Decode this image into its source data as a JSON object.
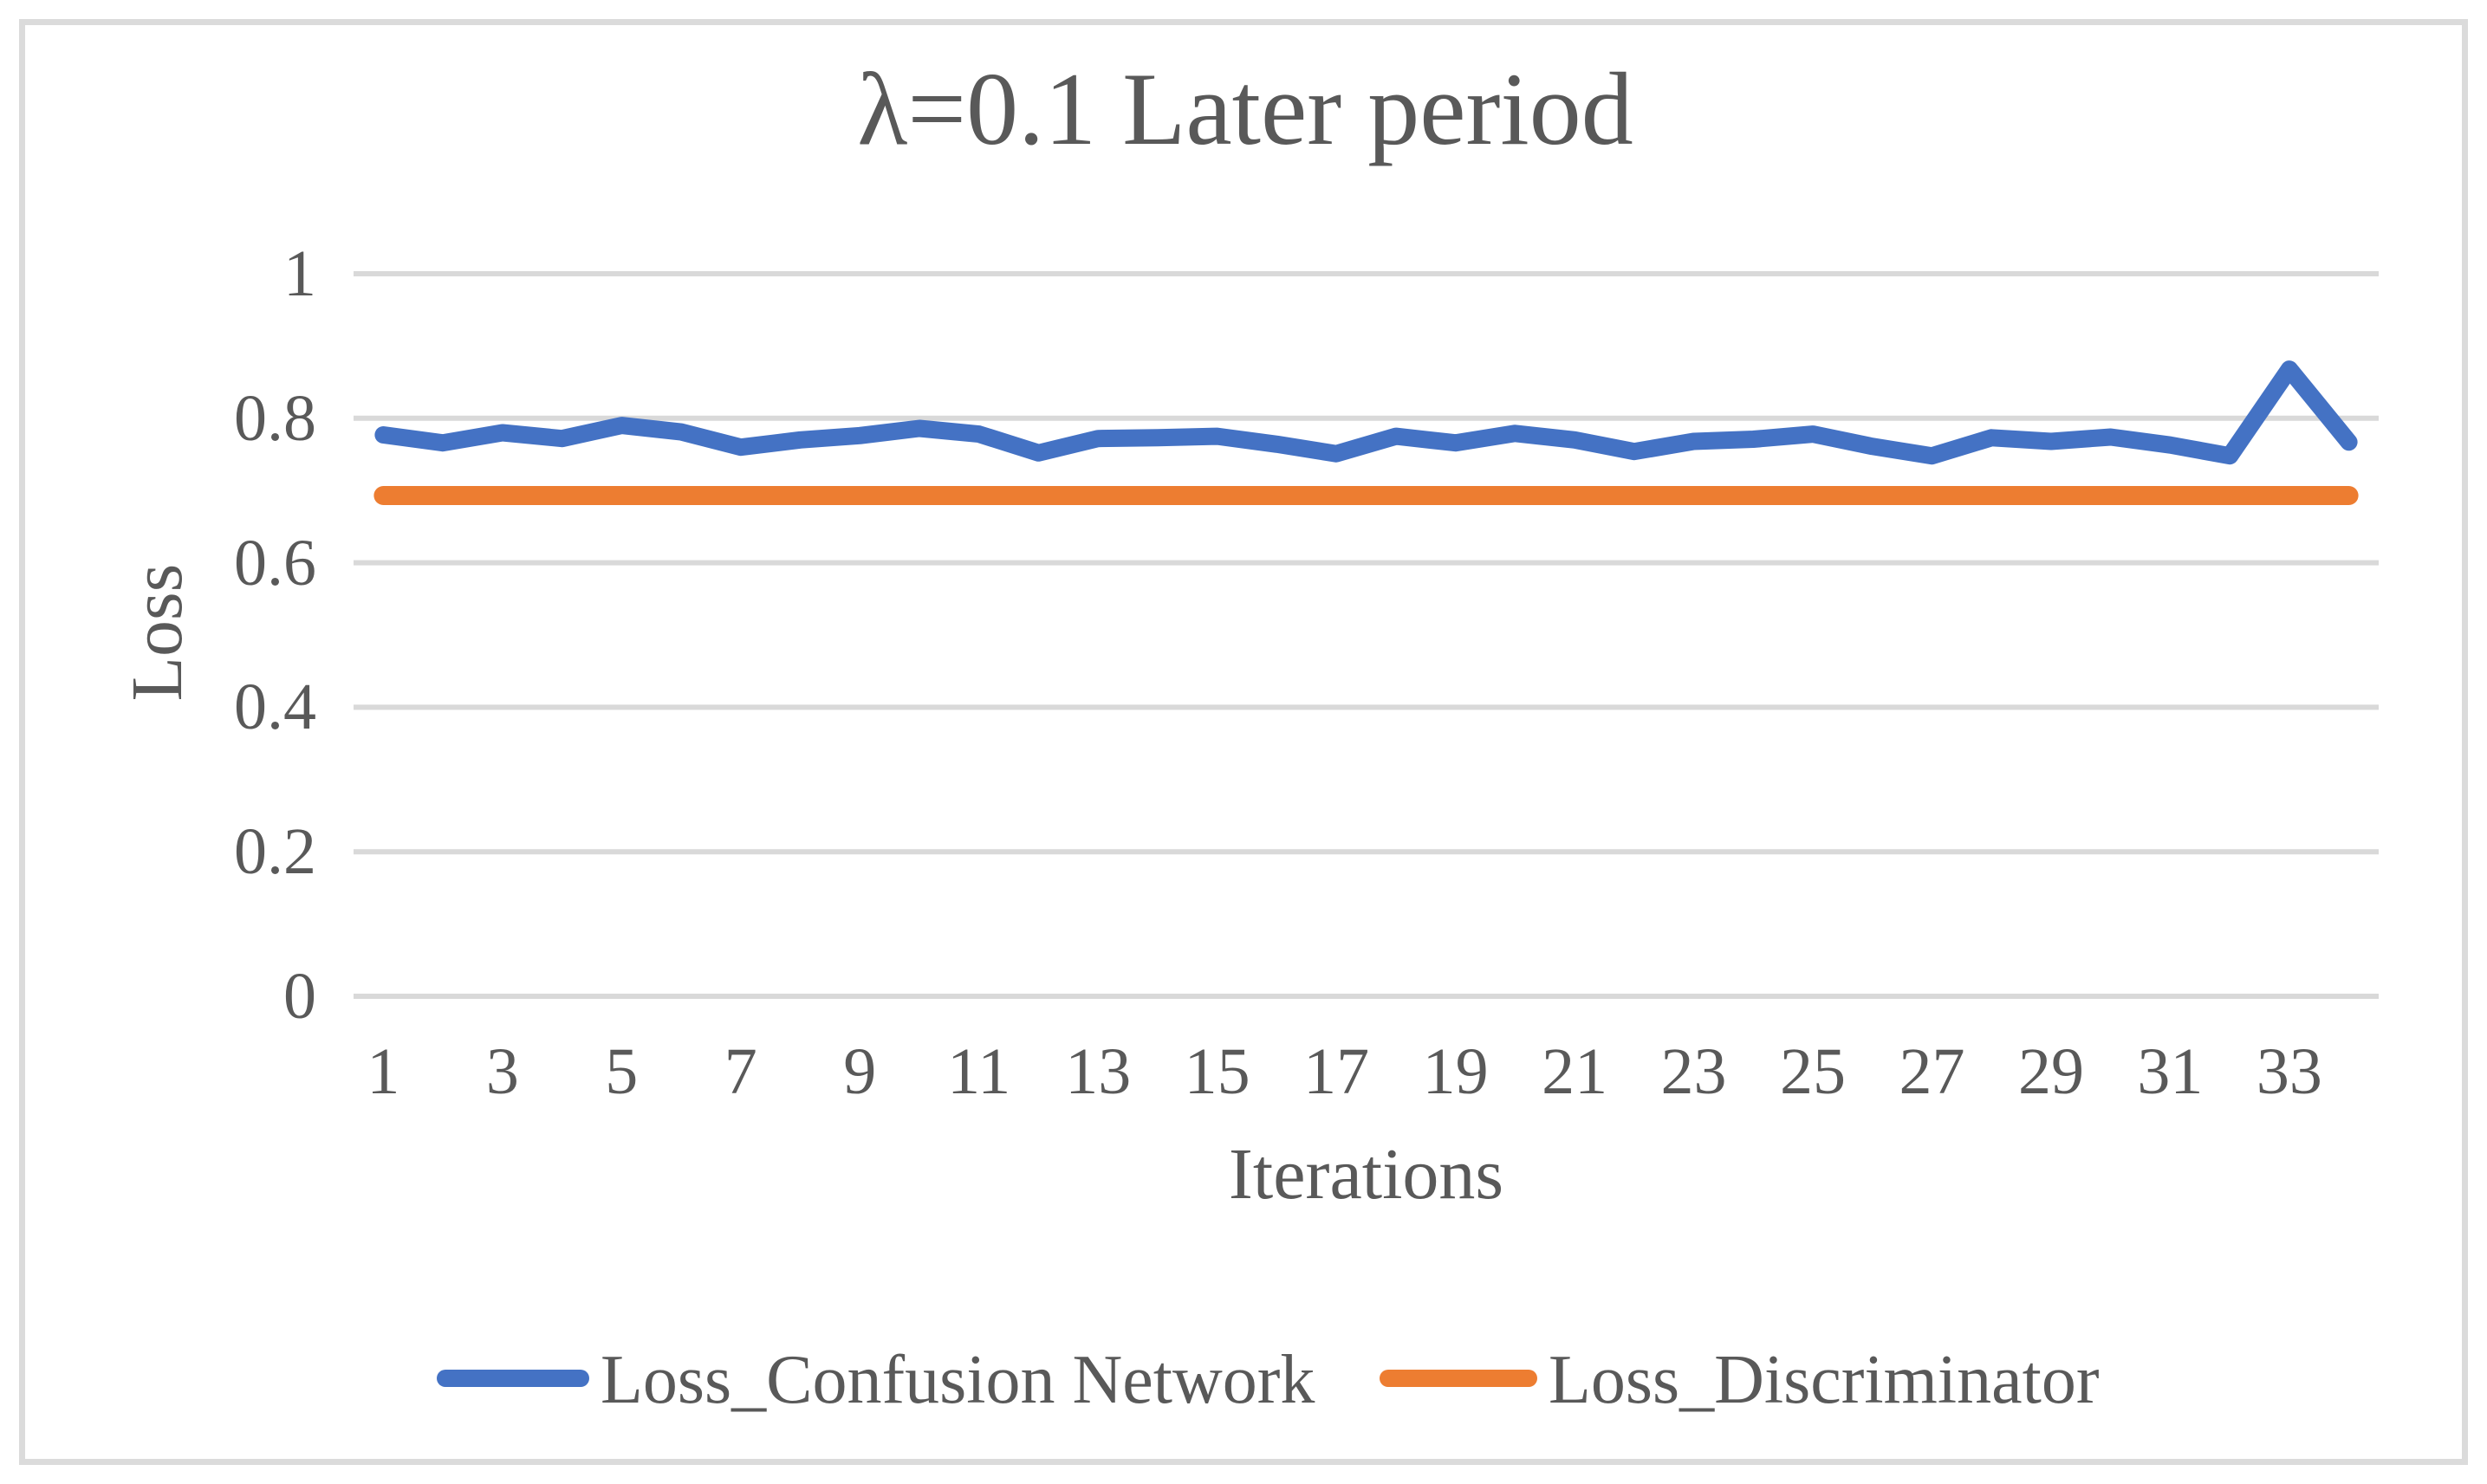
{
  "chart_data": {
    "type": "line",
    "title": "λ=0.1 Later period",
    "xlabel": "Iterations",
    "ylabel": "Loss",
    "x": [
      1,
      2,
      3,
      4,
      5,
      6,
      7,
      8,
      9,
      10,
      11,
      12,
      13,
      14,
      15,
      16,
      17,
      18,
      19,
      20,
      21,
      22,
      23,
      24,
      25,
      26,
      27,
      28,
      29,
      30,
      31,
      32,
      33,
      34
    ],
    "series": [
      {
        "name": "Loss_Confusion Network",
        "color": "#4472C4",
        "stroke_width": 20,
        "values": [
          0.777,
          0.766,
          0.78,
          0.772,
          0.79,
          0.781,
          0.76,
          0.77,
          0.776,
          0.786,
          0.778,
          0.752,
          0.772,
          0.773,
          0.775,
          0.764,
          0.751,
          0.775,
          0.766,
          0.779,
          0.77,
          0.754,
          0.768,
          0.771,
          0.778,
          0.761,
          0.748,
          0.773,
          0.768,
          0.774,
          0.763,
          0.748,
          0.868,
          0.767
        ]
      },
      {
        "name": "Loss_Discriminator",
        "color": "#ED7D31",
        "stroke_width": 22,
        "values": [
          0.693,
          0.693,
          0.693,
          0.693,
          0.693,
          0.693,
          0.693,
          0.693,
          0.693,
          0.693,
          0.693,
          0.693,
          0.693,
          0.693,
          0.693,
          0.693,
          0.693,
          0.693,
          0.693,
          0.693,
          0.693,
          0.693,
          0.693,
          0.693,
          0.693,
          0.693,
          0.693,
          0.693,
          0.693,
          0.693,
          0.693,
          0.693,
          0.693,
          0.693
        ]
      }
    ],
    "ylim": [
      0,
      1
    ],
    "yticks": [
      "0",
      "0.2",
      "0.4",
      "0.6",
      "0.8",
      "1"
    ],
    "ytick_values": [
      0,
      0.2,
      0.4,
      0.6,
      0.8,
      1
    ],
    "xticks": [
      "1",
      "3",
      "5",
      "7",
      "9",
      "11",
      "13",
      "15",
      "17",
      "19",
      "21",
      "23",
      "25",
      "27",
      "29",
      "31",
      "33"
    ],
    "xtick_values": [
      1,
      3,
      5,
      7,
      9,
      11,
      13,
      15,
      17,
      19,
      21,
      23,
      25,
      27,
      29,
      31,
      33
    ],
    "grid": "horizontal",
    "gridline_color": "#D9D9D9",
    "text_color": "#595959",
    "frame_border_color": "#DBDBDB",
    "legend_position": "bottom",
    "legend": [
      "Loss_Confusion Network",
      "Loss_Discriminator"
    ]
  }
}
